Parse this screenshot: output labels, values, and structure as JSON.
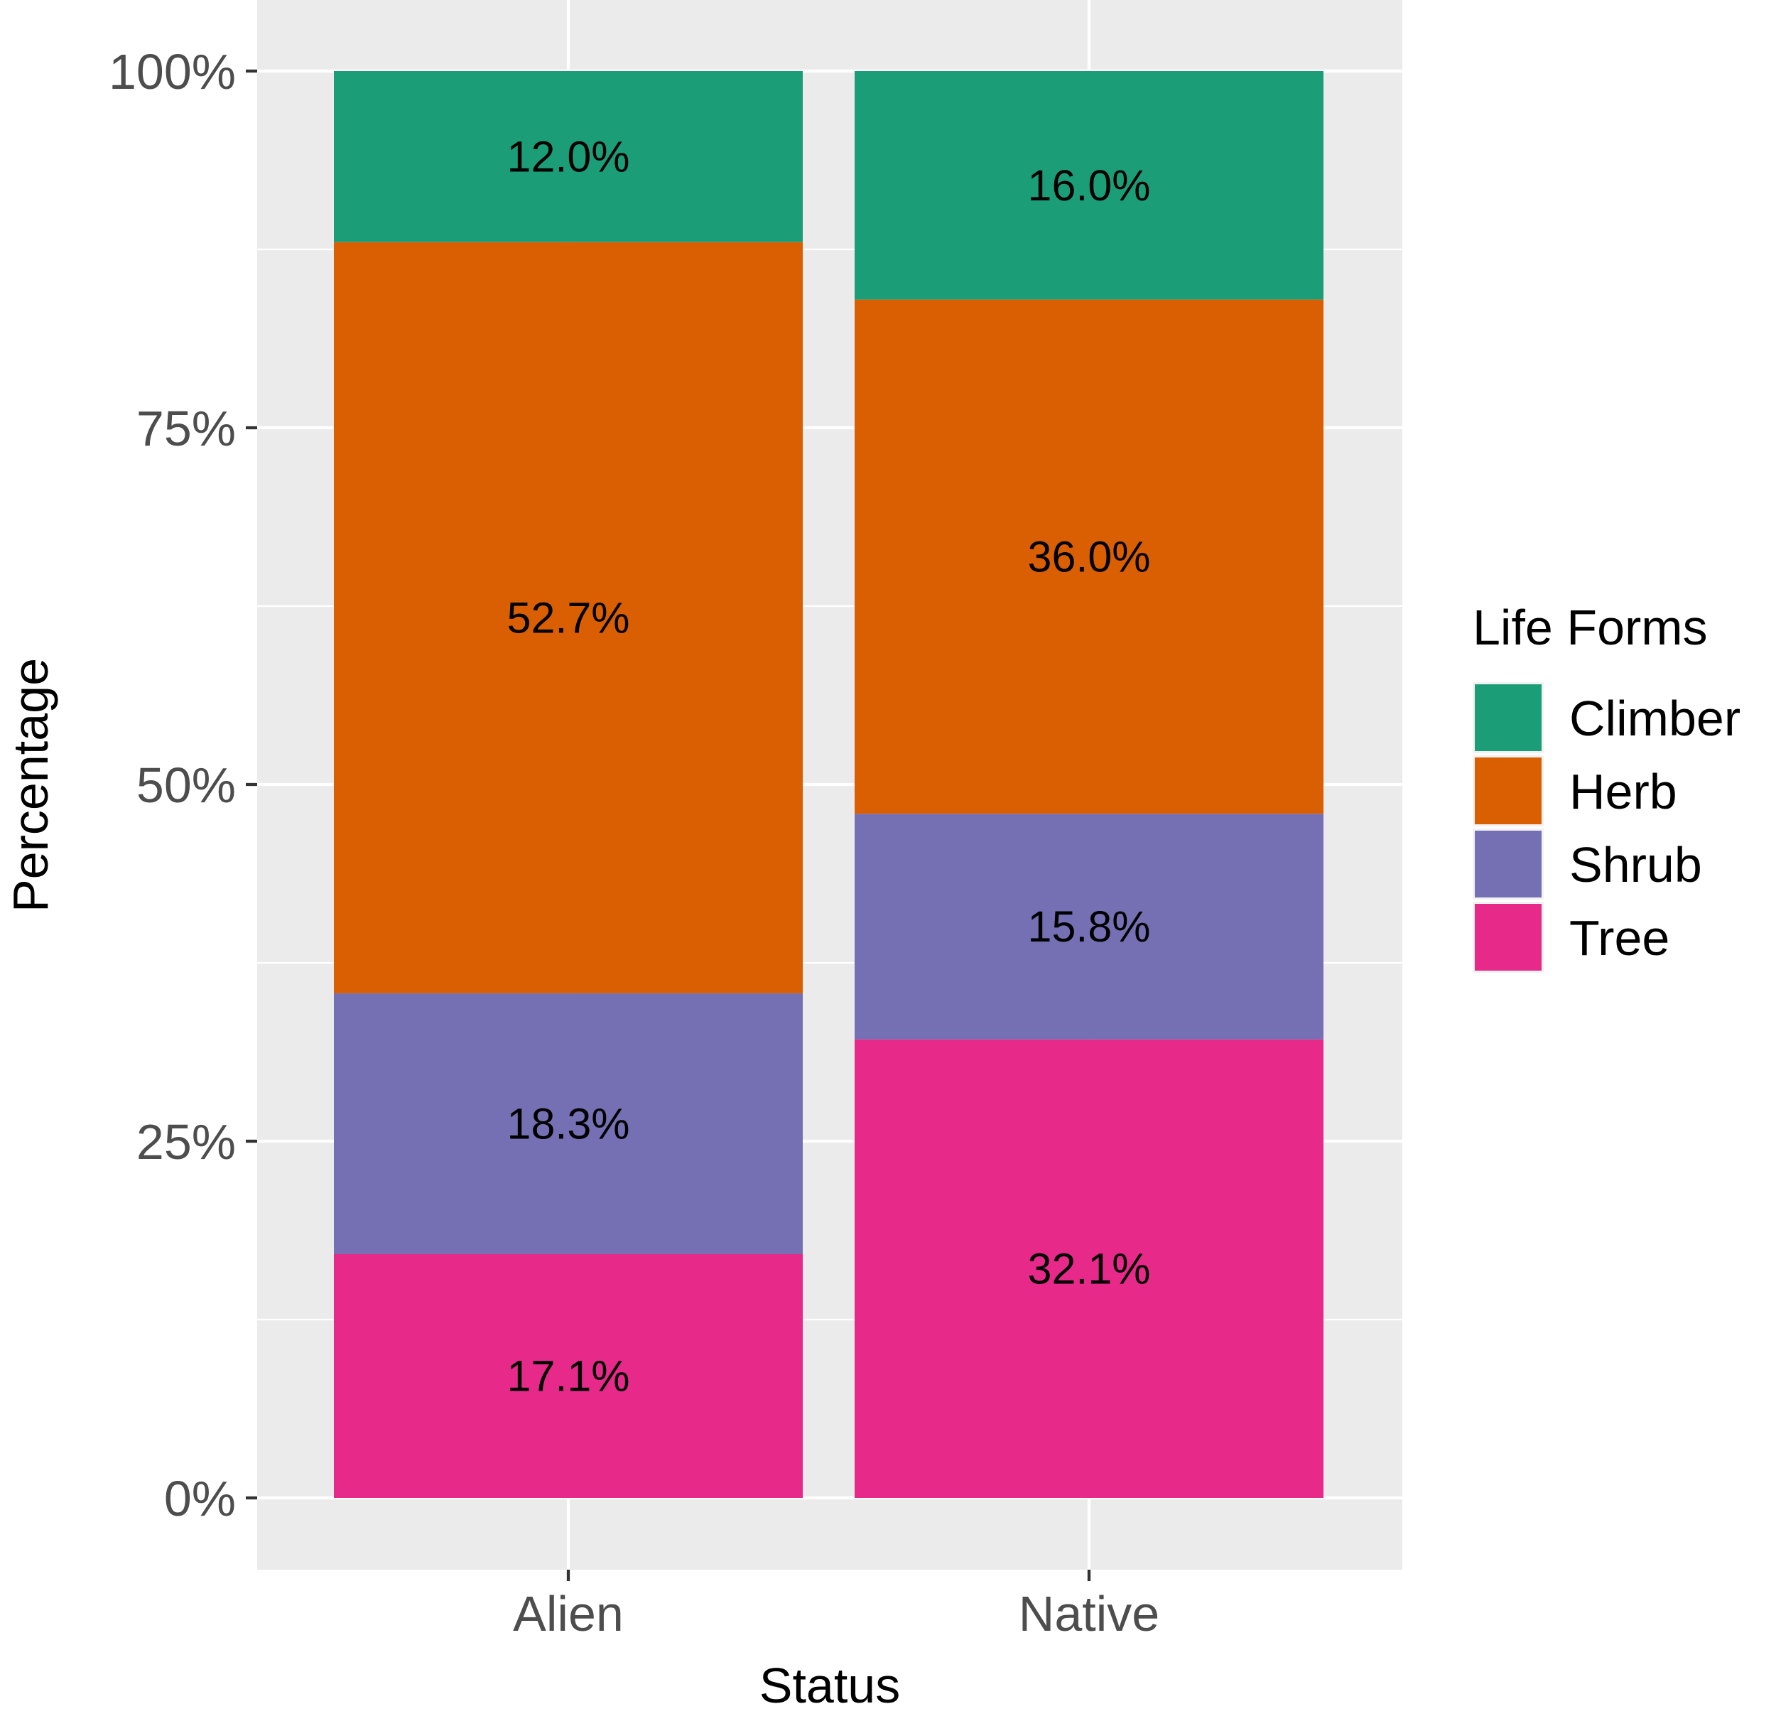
{
  "chart_data": {
    "type": "bar",
    "stacked": true,
    "categories": [
      "Alien",
      "Native"
    ],
    "series": [
      {
        "name": "Tree",
        "color": "#E7298A",
        "values": [
          17.1,
          32.1
        ],
        "labels": [
          "17.1%",
          "32.1%"
        ]
      },
      {
        "name": "Shrub",
        "color": "#7570B3",
        "values": [
          18.3,
          15.8
        ],
        "labels": [
          "18.3%",
          "15.8%"
        ]
      },
      {
        "name": "Herb",
        "color": "#D95F02",
        "values": [
          52.7,
          36.0
        ],
        "labels": [
          "52.7%",
          "36.0%"
        ]
      },
      {
        "name": "Climber",
        "color": "#1B9E77",
        "values": [
          12.0,
          16.0
        ],
        "labels": [
          "12.0%",
          "16.0%"
        ]
      }
    ],
    "xlabel": "Status",
    "ylabel": "Percentage",
    "ylim": [
      0,
      100
    ],
    "yticks": [
      0,
      25,
      50,
      75,
      100
    ],
    "ytick_labels": [
      "0%",
      "25%",
      "50%",
      "75%",
      "100%"
    ],
    "legend": {
      "title": "Life Forms",
      "position": "right",
      "entries": [
        "Climber",
        "Herb",
        "Shrub",
        "Tree"
      ]
    },
    "grid": true
  }
}
